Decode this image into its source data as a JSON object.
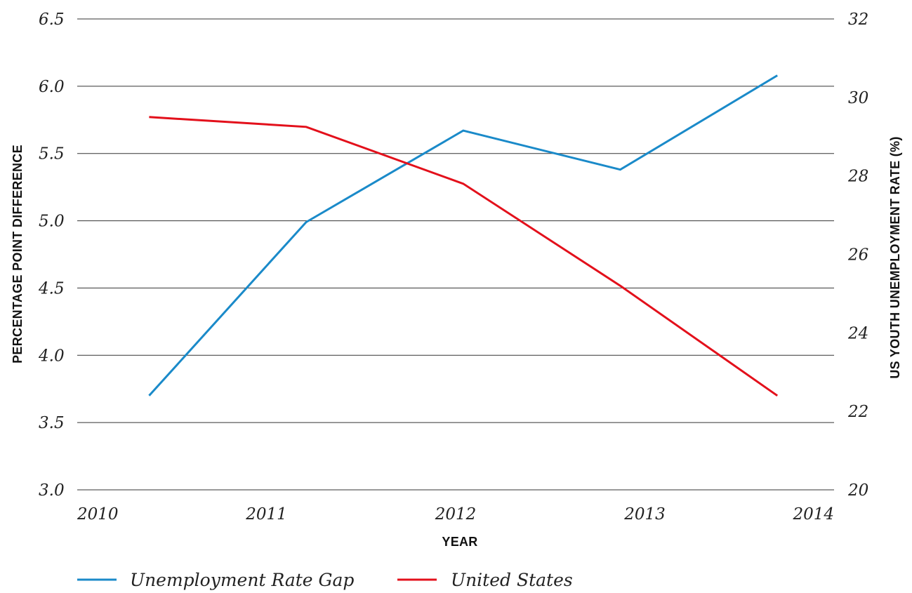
{
  "chart_data": {
    "type": "line",
    "xlabel": "YEAR",
    "ylabel_left": "PERCENTAGE POINT DIFFERENCE",
    "ylabel_right": "US YOUTH UNEMPLOYMENT RATE (%)",
    "x_ticks": [
      "2010",
      "2011",
      "2012",
      "2013",
      "2014"
    ],
    "xlim": [
      2010,
      2014
    ],
    "y_left_ticks": [
      "3.0",
      "3.5",
      "4.0",
      "4.5",
      "5.0",
      "5.5",
      "6.0",
      "6.5"
    ],
    "ylim_left": [
      3.0,
      6.5
    ],
    "y_right_ticks": [
      "20",
      "22",
      "24",
      "26",
      "28",
      "30",
      "32"
    ],
    "ylim_right": [
      20,
      32
    ],
    "grid": "horizontal",
    "legend_position": "bottom-left",
    "series": [
      {
        "name": "Unemployment Rate Gap",
        "axis": "left",
        "color": "#1a8ac9",
        "x": [
          2010.38,
          2011.21,
          2012.04,
          2012.87,
          2013.7
        ],
        "values": [
          3.7,
          4.99,
          5.67,
          5.38,
          6.08
        ]
      },
      {
        "name": "United States",
        "axis": "right",
        "color": "#e3101b",
        "x": [
          2010.38,
          2011.21,
          2012.04,
          2012.87,
          2013.7
        ],
        "values": [
          29.5,
          29.25,
          27.8,
          25.2,
          22.4
        ]
      }
    ]
  }
}
